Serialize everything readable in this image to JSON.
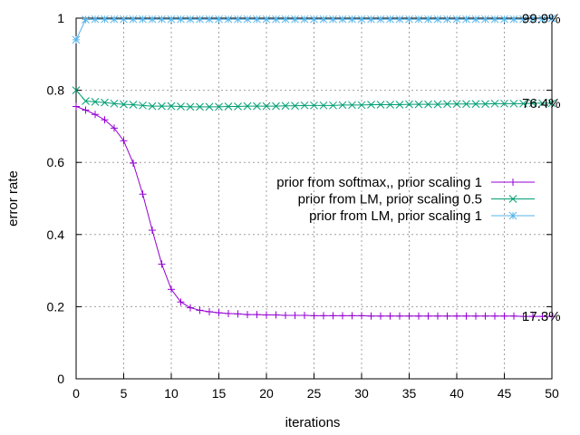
{
  "chart_data": {
    "type": "line",
    "xlabel": "iterations",
    "ylabel": "error rate",
    "xlim": [
      0,
      50
    ],
    "ylim": [
      0,
      1
    ],
    "xticks": [
      0,
      5,
      10,
      15,
      20,
      25,
      30,
      35,
      40,
      45,
      50
    ],
    "yticks": [
      0,
      0.2,
      0.4,
      0.6,
      0.8,
      1
    ],
    "ytick_labels": [
      "0",
      "0.2",
      "0.4",
      "0.6",
      "0.8",
      "1"
    ],
    "grid": true,
    "legend_position": "right",
    "x": [
      0,
      1,
      2,
      3,
      4,
      5,
      6,
      7,
      8,
      9,
      10,
      11,
      12,
      13,
      14,
      15,
      16,
      17,
      18,
      19,
      20,
      21,
      22,
      23,
      24,
      25,
      26,
      27,
      28,
      29,
      30,
      31,
      32,
      33,
      34,
      35,
      36,
      37,
      38,
      39,
      40,
      41,
      42,
      43,
      44,
      45,
      46,
      47,
      48,
      49,
      50
    ],
    "series": [
      {
        "name": "prior from softmax,, prior scaling 1",
        "color": "#9400d3",
        "marker": "plus",
        "values": [
          0.755,
          0.745,
          0.733,
          0.718,
          0.695,
          0.66,
          0.598,
          0.512,
          0.412,
          0.318,
          0.248,
          0.213,
          0.197,
          0.19,
          0.186,
          0.183,
          0.181,
          0.18,
          0.178,
          0.178,
          0.177,
          0.177,
          0.176,
          0.176,
          0.176,
          0.175,
          0.175,
          0.175,
          0.175,
          0.175,
          0.175,
          0.174,
          0.174,
          0.174,
          0.174,
          0.174,
          0.174,
          0.174,
          0.174,
          0.174,
          0.174,
          0.174,
          0.174,
          0.174,
          0.174,
          0.174,
          0.174,
          0.173,
          0.173,
          0.173,
          0.173
        ],
        "end_label": "17.3%"
      },
      {
        "name": "prior from LM, prior scaling 0.5",
        "color": "#009e73",
        "marker": "x",
        "values": [
          0.8,
          0.77,
          0.768,
          0.766,
          0.763,
          0.761,
          0.76,
          0.758,
          0.756,
          0.756,
          0.756,
          0.755,
          0.754,
          0.754,
          0.754,
          0.754,
          0.755,
          0.755,
          0.756,
          0.756,
          0.756,
          0.756,
          0.757,
          0.757,
          0.758,
          0.758,
          0.758,
          0.758,
          0.759,
          0.759,
          0.759,
          0.76,
          0.76,
          0.76,
          0.76,
          0.761,
          0.761,
          0.761,
          0.761,
          0.762,
          0.762,
          0.762,
          0.762,
          0.762,
          0.763,
          0.763,
          0.763,
          0.763,
          0.764,
          0.764,
          0.764
        ],
        "end_label": "76.4%"
      },
      {
        "name": "prior from LM, prior scaling 1",
        "color": "#56b4e9",
        "marker": "star",
        "values": [
          0.94,
          0.996,
          0.997,
          0.997,
          0.997,
          0.997,
          0.997,
          0.997,
          0.997,
          0.997,
          0.997,
          0.997,
          0.997,
          0.997,
          0.997,
          0.997,
          0.997,
          0.997,
          0.997,
          0.997,
          0.997,
          0.997,
          0.997,
          0.997,
          0.997,
          0.997,
          0.997,
          0.997,
          0.997,
          0.997,
          0.997,
          0.997,
          0.997,
          0.997,
          0.997,
          0.997,
          0.997,
          0.997,
          0.997,
          0.997,
          0.997,
          0.997,
          0.997,
          0.997,
          0.997,
          0.997,
          0.997,
          0.997,
          0.998,
          0.998,
          0.999
        ],
        "end_label": "99.9%"
      }
    ]
  }
}
